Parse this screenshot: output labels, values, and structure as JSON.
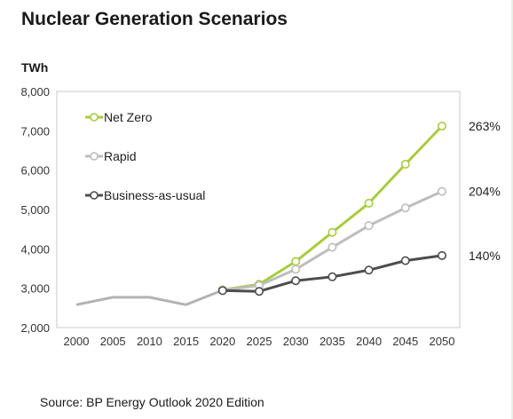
{
  "title": "Nuclear Generation Scenarios",
  "source": "Source: BP Energy Outlook 2020 Edition",
  "chart_data": {
    "type": "line",
    "ylabel": "TWh",
    "ylim": [
      2000,
      8000
    ],
    "yticks": [
      2000,
      3000,
      4000,
      5000,
      6000,
      7000,
      8000
    ],
    "ytick_labels": [
      "2,000",
      "3,000",
      "4,000",
      "5,000",
      "6,000",
      "7,000",
      "8,000"
    ],
    "x": [
      "2000",
      "2005",
      "2010",
      "2015",
      "2020",
      "2025",
      "2030",
      "2035",
      "2040",
      "2045",
      "2050"
    ],
    "grid": false,
    "legend_position": "top-left",
    "history": {
      "color": "#b3b3b3",
      "values": [
        2580,
        2770,
        2770,
        2580,
        2950,
        null,
        null,
        null,
        null,
        null,
        null
      ]
    },
    "series": [
      {
        "name": "Net Zero",
        "color": "#a8cc3c",
        "values": [
          null,
          null,
          null,
          null,
          2960,
          3100,
          3680,
          4420,
          5160,
          6150,
          7120
        ],
        "end_label": "263%"
      },
      {
        "name": "Rapid",
        "color": "#bdbdbd",
        "values": [
          null,
          null,
          null,
          null,
          2950,
          3070,
          3480,
          4040,
          4590,
          5040,
          5460
        ],
        "end_label": "204%"
      },
      {
        "name": "Business-as-usual",
        "color": "#4d4d4d",
        "values": [
          null,
          null,
          null,
          null,
          2940,
          2920,
          3190,
          3290,
          3460,
          3700,
          3830
        ],
        "end_label": "140%"
      }
    ]
  }
}
